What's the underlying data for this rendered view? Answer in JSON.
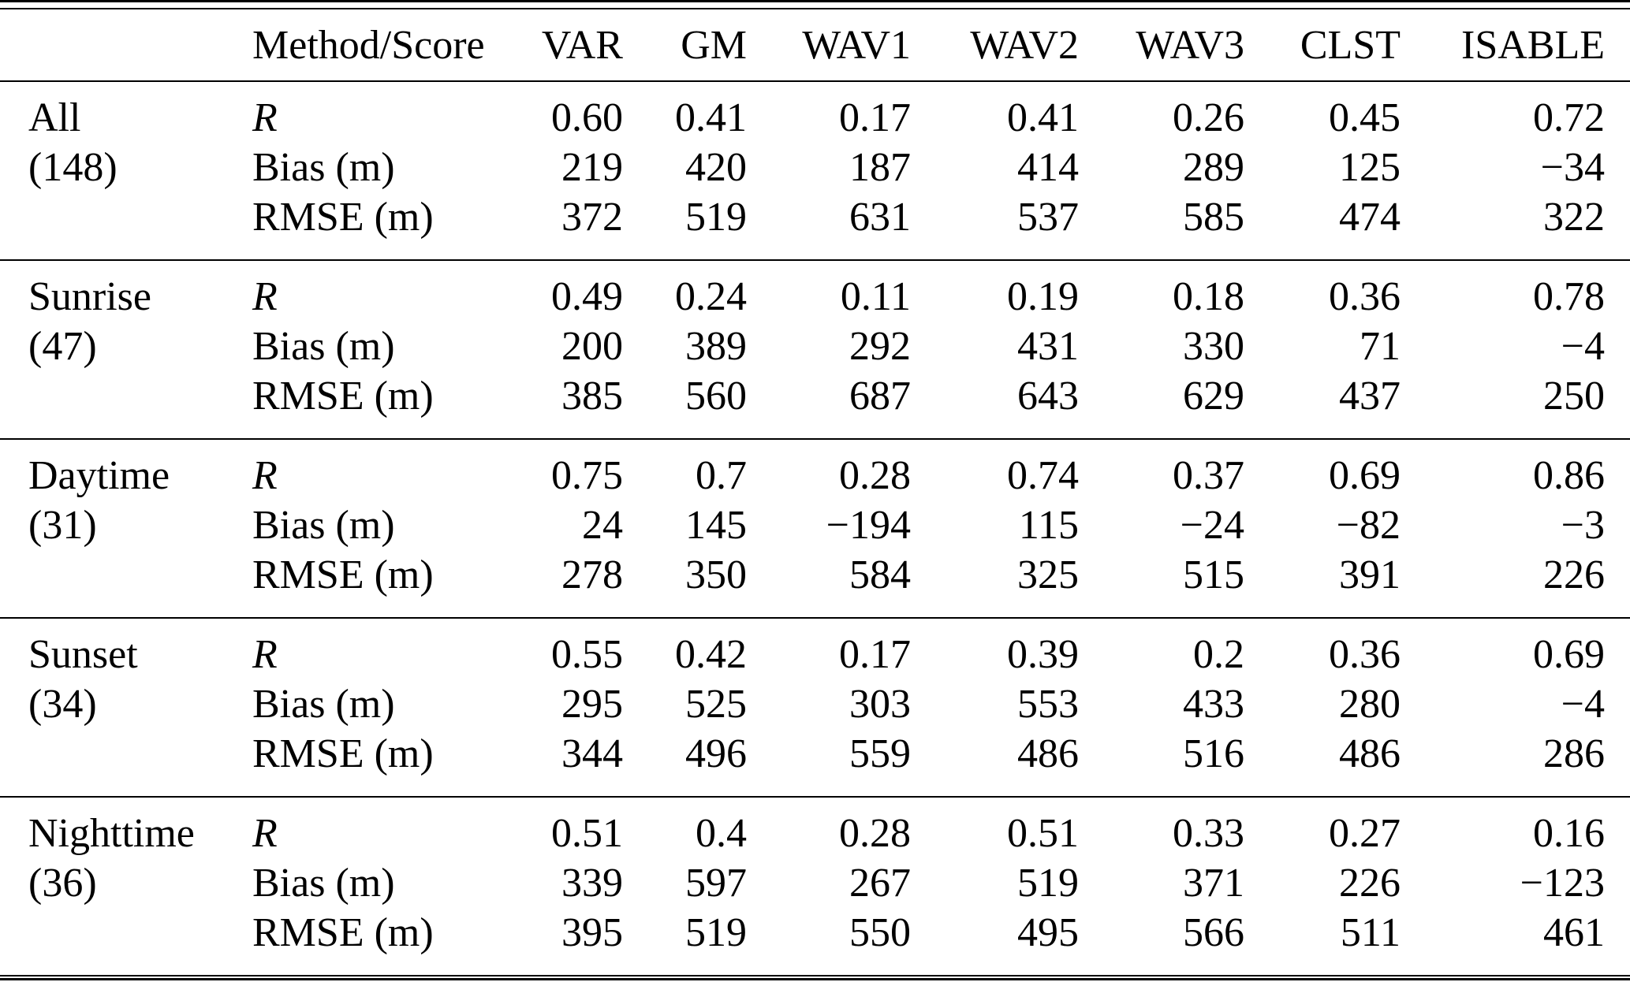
{
  "table": {
    "columns": [
      "Method/Score",
      "VAR",
      "GM",
      "WAV1",
      "WAV2",
      "WAV3",
      "CLST",
      "ISABLE"
    ],
    "groups": [
      {
        "label": "All",
        "count": "(148)",
        "rows": [
          {
            "metric": "R",
            "values": [
              "0.60",
              "0.41",
              "0.17",
              "0.41",
              "0.26",
              "0.45",
              "0.72"
            ]
          },
          {
            "metric": "Bias (m)",
            "values": [
              "219",
              "420",
              "187",
              "414",
              "289",
              "125",
              "−34"
            ]
          },
          {
            "metric": "RMSE (m)",
            "values": [
              "372",
              "519",
              "631",
              "537",
              "585",
              "474",
              "322"
            ]
          }
        ]
      },
      {
        "label": "Sunrise",
        "count": "(47)",
        "rows": [
          {
            "metric": "R",
            "values": [
              "0.49",
              "0.24",
              "0.11",
              "0.19",
              "0.18",
              "0.36",
              "0.78"
            ]
          },
          {
            "metric": "Bias (m)",
            "values": [
              "200",
              "389",
              "292",
              "431",
              "330",
              "71",
              "−4"
            ]
          },
          {
            "metric": "RMSE (m)",
            "values": [
              "385",
              "560",
              "687",
              "643",
              "629",
              "437",
              "250"
            ]
          }
        ]
      },
      {
        "label": "Daytime",
        "count": "(31)",
        "rows": [
          {
            "metric": "R",
            "values": [
              "0.75",
              "0.7",
              "0.28",
              "0.74",
              "0.37",
              "0.69",
              "0.86"
            ]
          },
          {
            "metric": "Bias (m)",
            "values": [
              "24",
              "145",
              "−194",
              "115",
              "−24",
              "−82",
              "−3"
            ]
          },
          {
            "metric": "RMSE (m)",
            "values": [
              "278",
              "350",
              "584",
              "325",
              "515",
              "391",
              "226"
            ]
          }
        ]
      },
      {
        "label": "Sunset",
        "count": "(34)",
        "rows": [
          {
            "metric": "R",
            "values": [
              "0.55",
              "0.42",
              "0.17",
              "0.39",
              "0.2",
              "0.36",
              "0.69"
            ]
          },
          {
            "metric": "Bias (m)",
            "values": [
              "295",
              "525",
              "303",
              "553",
              "433",
              "280",
              "−4"
            ]
          },
          {
            "metric": "RMSE (m)",
            "values": [
              "344",
              "496",
              "559",
              "486",
              "516",
              "486",
              "286"
            ]
          }
        ]
      },
      {
        "label": "Nighttime",
        "count": "(36)",
        "rows": [
          {
            "metric": "R",
            "values": [
              "0.51",
              "0.4",
              "0.28",
              "0.51",
              "0.33",
              "0.27",
              "0.16"
            ]
          },
          {
            "metric": "Bias (m)",
            "values": [
              "339",
              "597",
              "267",
              "519",
              "371",
              "226",
              "−123"
            ]
          },
          {
            "metric": "RMSE (m)",
            "values": [
              "395",
              "519",
              "550",
              "495",
              "566",
              "511",
              "461"
            ]
          }
        ]
      }
    ],
    "colors": {
      "text": "#000000",
      "rule": "#000000",
      "background": "#ffffff"
    }
  }
}
